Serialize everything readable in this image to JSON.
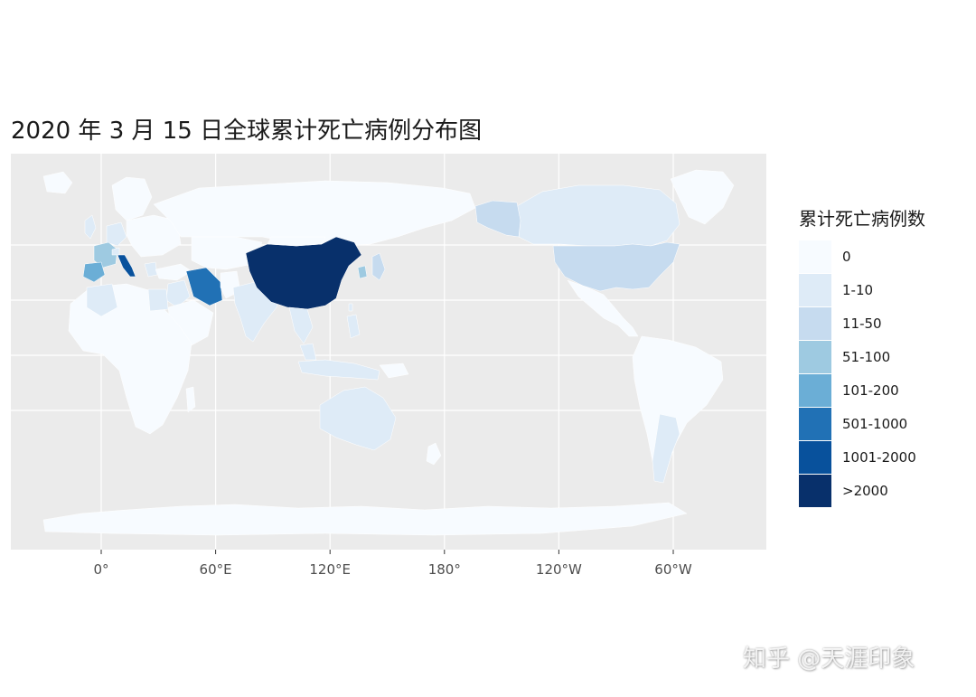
{
  "title": "2020 年 3 月 15 日全球累计死亡病例分布图",
  "legend": {
    "title": "累计死亡病例数",
    "items": [
      {
        "label": "0",
        "color": "#f7fbff"
      },
      {
        "label": "1-10",
        "color": "#deebf7"
      },
      {
        "label": "11-50",
        "color": "#c6dbef"
      },
      {
        "label": "51-100",
        "color": "#9ecae1"
      },
      {
        "label": "101-200",
        "color": "#6baed6"
      },
      {
        "label": "501-1000",
        "color": "#2171b5"
      },
      {
        "label": "1001-2000",
        "color": "#08519c"
      },
      {
        "label": ">2000",
        "color": "#08306b"
      }
    ]
  },
  "axis": {
    "x_ticks": [
      {
        "label": "0°",
        "lon": 0
      },
      {
        "label": "60°E",
        "lon": 60
      },
      {
        "label": "120°E",
        "lon": 120
      },
      {
        "label": "180°",
        "lon": 180
      },
      {
        "label": "120°W",
        "lon": 240
      },
      {
        "label": "60°W",
        "lon": 300
      }
    ],
    "y_grid_lat": [
      60,
      30,
      0,
      -30
    ]
  },
  "map_data": {
    "projection": "equirectangular, centered on 150°E",
    "regions": [
      {
        "name": "China",
        "category": ">2000"
      },
      {
        "name": "Italy",
        "category": "1001-2000"
      },
      {
        "name": "Iran",
        "category": "501-1000"
      },
      {
        "name": "Spain",
        "category": "101-200"
      },
      {
        "name": "France",
        "category": "51-100"
      },
      {
        "name": "United States",
        "category": "11-50"
      },
      {
        "name": "Alaska",
        "category": "11-50"
      },
      {
        "name": "South Korea",
        "category": "51-100"
      },
      {
        "name": "Japan",
        "category": "11-50"
      },
      {
        "name": "Australia",
        "category": "1-10"
      },
      {
        "name": "Canada",
        "category": "1-10"
      },
      {
        "name": "India",
        "category": "1-10"
      },
      {
        "name": "Iraq",
        "category": "1-10"
      },
      {
        "name": "Egypt",
        "category": "1-10"
      },
      {
        "name": "Algeria",
        "category": "1-10"
      },
      {
        "name": "Argentina",
        "category": "1-10"
      },
      {
        "name": "Philippines",
        "category": "1-10"
      },
      {
        "name": "Indonesia",
        "category": "1-10"
      },
      {
        "name": "Thailand",
        "category": "1-10"
      },
      {
        "name": "Malaysia",
        "category": "1-10"
      },
      {
        "name": "Germany",
        "category": "1-10"
      },
      {
        "name": "United Kingdom",
        "category": "1-10"
      },
      {
        "name": "Netherlands",
        "category": "1-10"
      },
      {
        "name": "Switzerland",
        "category": "1-10"
      },
      {
        "name": "Greece",
        "category": "1-10"
      },
      {
        "name": "Lebanon",
        "category": "1-10"
      },
      {
        "name": "Taiwan",
        "category": "1-10"
      }
    ]
  },
  "watermark": "知乎 @天涯印象"
}
